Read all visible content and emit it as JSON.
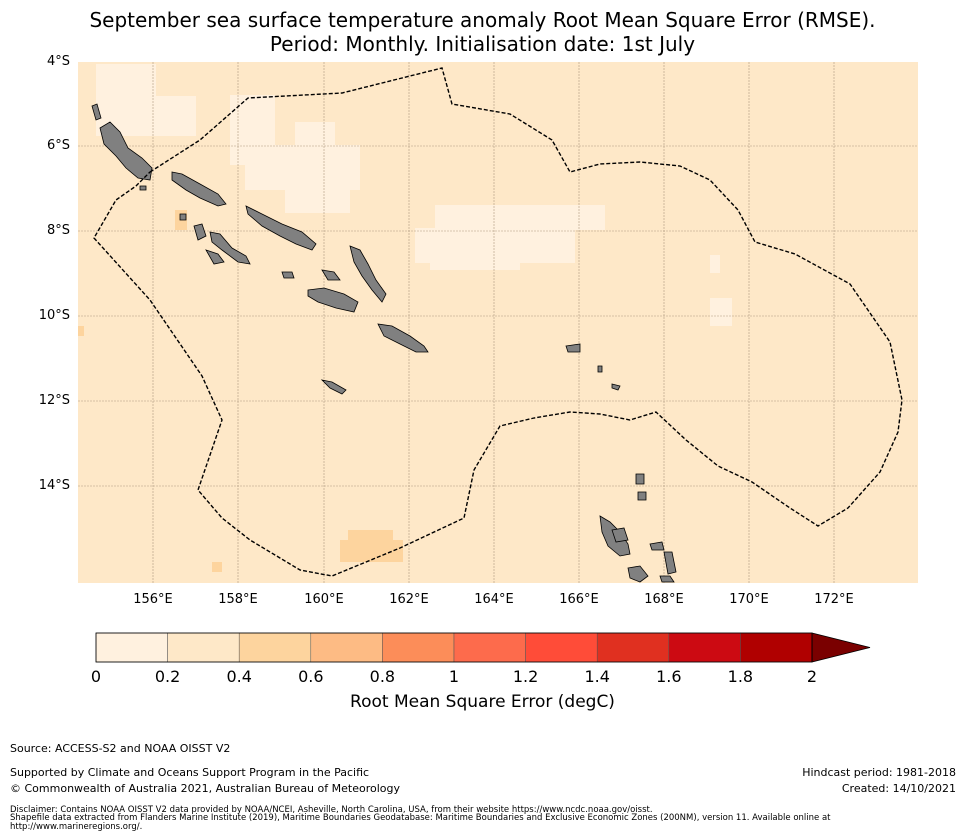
{
  "title": {
    "line1": "September sea surface temperature anomaly Root Mean Square Error (RMSE).",
    "line2": "Period: Monthly. Initialisation date: 1st July"
  },
  "map": {
    "lat_labels": [
      "4°S",
      "6°S",
      "8°S",
      "10°S",
      "12°S",
      "14°S"
    ],
    "lon_labels": [
      "156°E",
      "158°E",
      "160°E",
      "162°E",
      "164°E",
      "166°E",
      "168°E",
      "170°E",
      "172°E"
    ],
    "lon_range": [
      154.0,
      174.0
    ],
    "lat_range": [
      -16.3,
      -4.0
    ],
    "background_rmse": 0.2,
    "colors": {
      "ocean": "#fee8c8",
      "low": "#fff1df",
      "mid": "#fdd49e",
      "land": "#808080",
      "grid": "#b09a80"
    },
    "features": [
      "eez-boundary-dashed",
      "solomon-islands",
      "vanuatu-north"
    ]
  },
  "colorbar": {
    "label": "Root Mean Square Error (degC)",
    "ticks": [
      "0",
      "0.2",
      "0.4",
      "0.6",
      "0.8",
      "1",
      "1.2",
      "1.4",
      "1.6",
      "1.8",
      "2"
    ],
    "colors": [
      "#fff1df",
      "#fee8c8",
      "#fdd49e",
      "#fdbb84",
      "#fc8d59",
      "#fd6b4c",
      "#ff4c38",
      "#e03020",
      "#cc0a12",
      "#b00000"
    ],
    "extend_color": "#7a0000"
  },
  "footer": {
    "source": "Source: ACCESS-S2 and NOAA OISST V2",
    "support": "Supported by Climate and Oceans Support Program in the Pacific",
    "copyright": "© Commonwealth of Australia 2021, Australian Bureau of Meteorology",
    "hindcast": "Hindcast period: 1981-2018",
    "created": "Created: 14/10/2021",
    "disclaimer1": "Disclaimer: Contains NOAA OISST V2 data provided by NOAA/NCEI, Asheville, North Carolina, USA, from their website https://www.ncdc.noaa.gov/oisst.",
    "disclaimer2": "Shapefile data extracted from Flanders Marine Institute (2019), Maritime Boundaries Geodatabase: Maritime Boundaries and Exclusive Economic Zones (200NM), version 11. Available online at",
    "disclaimer3": "http://www.marineregions.org/."
  }
}
